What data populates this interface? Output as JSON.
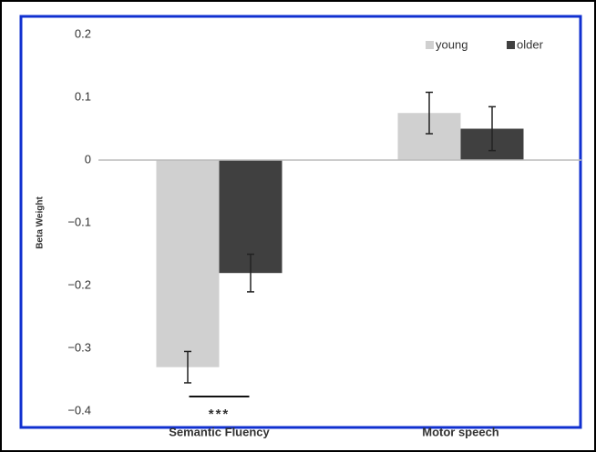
{
  "chart_data": {
    "type": "bar",
    "y_label": "Beta Weight",
    "categories": [
      "Semantic Fluency",
      "Motor speech"
    ],
    "series": [
      {
        "name": "young",
        "color": "#d0d0d0",
        "values": [
          -0.33,
          0.075
        ],
        "errors": [
          0.025,
          0.033
        ]
      },
      {
        "name": "older",
        "color": "#404040",
        "values": [
          -0.18,
          0.05
        ],
        "errors": [
          0.03,
          0.035
        ]
      }
    ],
    "annotation": "***",
    "ylim": [
      -0.4,
      0.2
    ],
    "yticks": [
      {
        "value": -0.4,
        "label": "−0.4"
      },
      {
        "value": -0.3,
        "label": "−0.3"
      },
      {
        "value": -0.2,
        "label": "−0.2"
      },
      {
        "value": -0.1,
        "label": "−0.1"
      },
      0,
      0.1,
      0.2
    ],
    "legend": "top-right"
  }
}
